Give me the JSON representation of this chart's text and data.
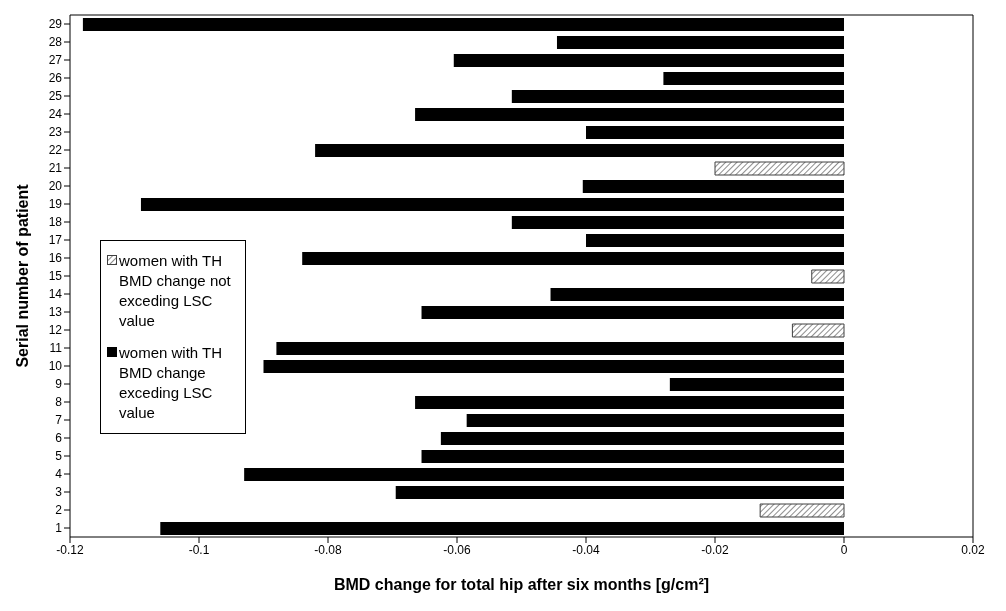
{
  "chart_data": {
    "type": "bar",
    "orientation": "horizontal",
    "stacked": true,
    "xlabel": "BMD change for total hip after six months [g/cm²]",
    "ylabel": "Serial number of patient",
    "categories": [
      "29",
      "28",
      "27",
      "26",
      "25",
      "24",
      "23",
      "22",
      "21",
      "20",
      "19",
      "18",
      "17",
      "16",
      "15",
      "14",
      "13",
      "12",
      "11",
      "10",
      "9",
      "8",
      "7",
      "6",
      "5",
      "4",
      "3",
      "2",
      "1"
    ],
    "series": [
      {
        "name": "women with TH BMD change not exceding LSC value",
        "color": "#404040",
        "values": [
          null,
          null,
          null,
          null,
          null,
          null,
          null,
          null,
          -0.02,
          null,
          null,
          null,
          null,
          null,
          -0.005,
          null,
          null,
          -0.008,
          null,
          null,
          null,
          null,
          null,
          null,
          null,
          null,
          null,
          -0.013,
          null
        ]
      },
      {
        "name": "women with TH BMD change exceding LSC value",
        "color": "#000000",
        "values": [
          -0.118,
          -0.0445,
          -0.0605,
          -0.028,
          -0.0515,
          -0.0665,
          -0.04,
          -0.082,
          null,
          -0.0405,
          -0.109,
          -0.0515,
          -0.04,
          -0.084,
          null,
          -0.0455,
          -0.0655,
          null,
          -0.088,
          -0.09,
          -0.027,
          -0.0665,
          -0.0585,
          -0.0625,
          -0.0655,
          -0.093,
          -0.0695,
          null,
          -0.106
        ]
      }
    ],
    "xlim": [
      -0.12,
      0.02
    ],
    "xticks": [
      -0.12,
      -0.1,
      -0.08,
      -0.06,
      -0.04,
      -0.02,
      0,
      0.02
    ],
    "grid": false,
    "legend": "left"
  }
}
